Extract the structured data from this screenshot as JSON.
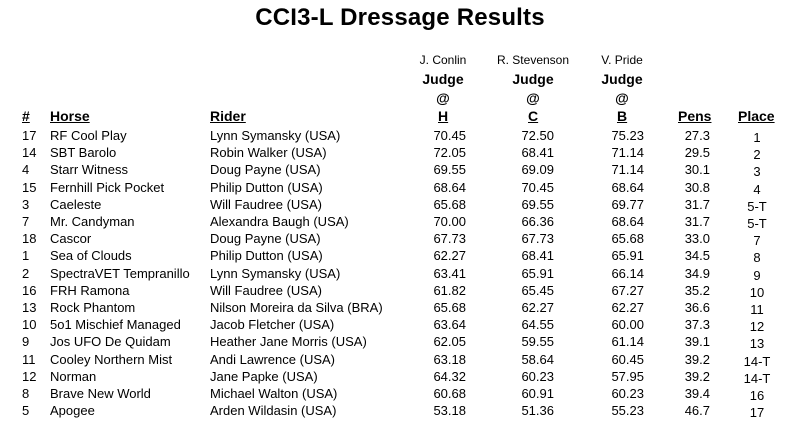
{
  "title": "CCI3-L Dressage Results",
  "judges": [
    {
      "name": "J. Conlin",
      "label": "Judge",
      "at": "@",
      "letter": "H"
    },
    {
      "name": "R. Stevenson",
      "label": "Judge",
      "at": "@",
      "letter": "C"
    },
    {
      "name": "V. Pride",
      "label": "Judge",
      "at": "@",
      "letter": "B"
    }
  ],
  "headers": {
    "num": "#",
    "horse": "Horse",
    "rider": "Rider",
    "pens": "Pens",
    "place": "Place"
  },
  "rows": [
    {
      "num": "17",
      "horse": "RF Cool Play",
      "rider": "Lynn Symansky (USA)",
      "h": "70.45",
      "c": "72.50",
      "b": "75.23",
      "pens": "27.3",
      "place": "1"
    },
    {
      "num": "14",
      "horse": "SBT Barolo",
      "rider": "Robin Walker (USA)",
      "h": "72.05",
      "c": "68.41",
      "b": "71.14",
      "pens": "29.5",
      "place": "2"
    },
    {
      "num": "4",
      "horse": "Starr Witness",
      "rider": "Doug Payne (USA)",
      "h": "69.55",
      "c": "69.09",
      "b": "71.14",
      "pens": "30.1",
      "place": "3"
    },
    {
      "num": "15",
      "horse": "Fernhill Pick Pocket",
      "rider": "Philip Dutton (USA)",
      "h": "68.64",
      "c": "70.45",
      "b": "68.64",
      "pens": "30.8",
      "place": "4"
    },
    {
      "num": "3",
      "horse": "Caeleste",
      "rider": "Will Faudree (USA)",
      "h": "65.68",
      "c": "69.55",
      "b": "69.77",
      "pens": "31.7",
      "place": "5-T"
    },
    {
      "num": "7",
      "horse": "Mr. Candyman",
      "rider": "Alexandra Baugh (USA)",
      "h": "70.00",
      "c": "66.36",
      "b": "68.64",
      "pens": "31.7",
      "place": "5-T"
    },
    {
      "num": "18",
      "horse": "Cascor",
      "rider": "Doug Payne (USA)",
      "h": "67.73",
      "c": "67.73",
      "b": "65.68",
      "pens": "33.0",
      "place": "7"
    },
    {
      "num": "1",
      "horse": "Sea of Clouds",
      "rider": "Philip Dutton (USA)",
      "h": "62.27",
      "c": "68.41",
      "b": "65.91",
      "pens": "34.5",
      "place": "8"
    },
    {
      "num": "2",
      "horse": "SpectraVET Tempranillo",
      "rider": "Lynn Symansky (USA)",
      "h": "63.41",
      "c": "65.91",
      "b": "66.14",
      "pens": "34.9",
      "place": "9"
    },
    {
      "num": "16",
      "horse": "FRH Ramona",
      "rider": "Will Faudree (USA)",
      "h": "61.82",
      "c": "65.45",
      "b": "67.27",
      "pens": "35.2",
      "place": "10"
    },
    {
      "num": "13",
      "horse": "Rock Phantom",
      "rider": "Nilson Moreira da Silva (BRA)",
      "h": "65.68",
      "c": "62.27",
      "b": "62.27",
      "pens": "36.6",
      "place": "11"
    },
    {
      "num": "10",
      "horse": "5o1 Mischief Managed",
      "rider": "Jacob Fletcher (USA)",
      "h": "63.64",
      "c": "64.55",
      "b": "60.00",
      "pens": "37.3",
      "place": "12"
    },
    {
      "num": "9",
      "horse": "Jos UFO De Quidam",
      "rider": "Heather Jane Morris (USA)",
      "h": "62.05",
      "c": "59.55",
      "b": "61.14",
      "pens": "39.1",
      "place": "13"
    },
    {
      "num": "11",
      "horse": "Cooley Northern Mist",
      "rider": "Andi Lawrence (USA)",
      "h": "63.18",
      "c": "58.64",
      "b": "60.45",
      "pens": "39.2",
      "place": "14-T"
    },
    {
      "num": "12",
      "horse": "Norman",
      "rider": "Jane Papke (USA)",
      "h": "64.32",
      "c": "60.23",
      "b": "57.95",
      "pens": "39.2",
      "place": "14-T"
    },
    {
      "num": "8",
      "horse": "Brave New World",
      "rider": "Michael Walton (USA)",
      "h": "60.68",
      "c": "60.91",
      "b": "60.23",
      "pens": "39.4",
      "place": "16"
    },
    {
      "num": "5",
      "horse": "Apogee",
      "rider": "Arden Wildasin (USA)",
      "h": "53.18",
      "c": "51.36",
      "b": "55.23",
      "pens": "46.7",
      "place": "17"
    }
  ]
}
